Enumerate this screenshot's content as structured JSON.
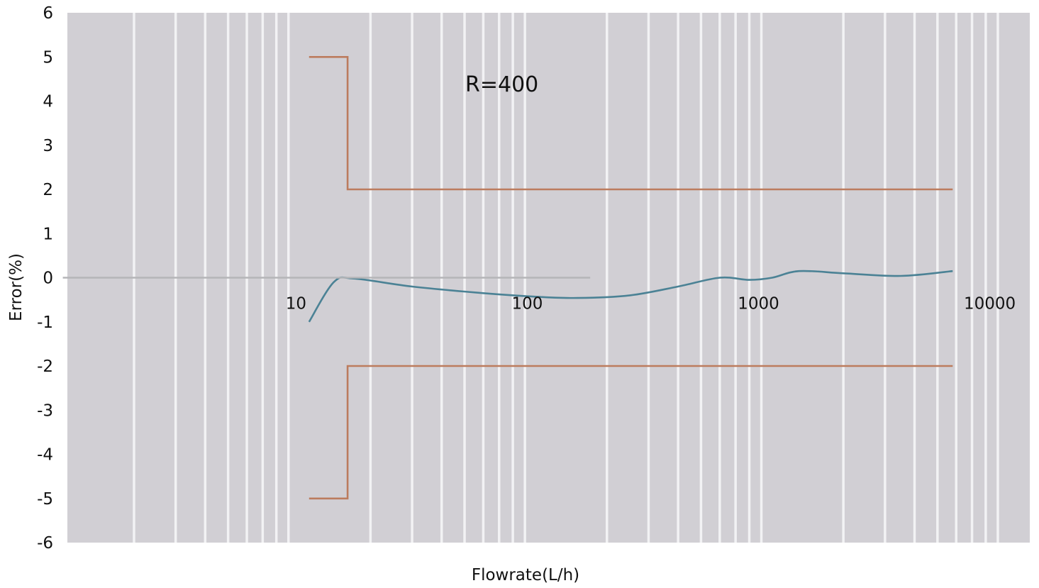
{
  "chart_data": {
    "type": "line",
    "title": "",
    "xlabel": "Flowrate(L/h)",
    "ylabel": "Error(%)",
    "x_scale": "log",
    "xlim": [
      1,
      20000
    ],
    "ylim": [
      -6,
      6
    ],
    "y_ticks": [
      6,
      5,
      4,
      3,
      2,
      1,
      0,
      -1,
      -2,
      -3,
      -4,
      -5,
      -6
    ],
    "x_tick_labels": [
      "10",
      "100",
      "1000",
      "10000"
    ],
    "x_tick_values": [
      10,
      100,
      1000,
      10000
    ],
    "grid": "vertical",
    "background": "#d1cfd4",
    "annotation": "R=400",
    "series": [
      {
        "color": "#bc7c5e",
        "step": true,
        "points": [
          [
            11,
            5
          ],
          [
            16,
            5
          ],
          [
            16,
            2
          ],
          [
            5800,
            2
          ]
        ]
      },
      {
        "color": "#bc7c5e",
        "step": true,
        "points": [
          [
            11,
            -5
          ],
          [
            16,
            -5
          ],
          [
            16,
            -2
          ],
          [
            5800,
            -2
          ]
        ]
      },
      {
        "color": "#4b8295",
        "points": [
          [
            11,
            -1
          ],
          [
            14,
            -0.1
          ],
          [
            17,
            -0.02
          ],
          [
            30,
            -0.2
          ],
          [
            60,
            -0.35
          ],
          [
            100,
            -0.43
          ],
          [
            150,
            -0.46
          ],
          [
            250,
            -0.4
          ],
          [
            400,
            -0.2
          ],
          [
            600,
            0
          ],
          [
            800,
            -0.05
          ],
          [
            1000,
            0
          ],
          [
            1300,
            0.15
          ],
          [
            2000,
            0.1
          ],
          [
            3500,
            0.04
          ],
          [
            5800,
            0.15
          ]
        ]
      },
      {
        "color": "#b5b5b8",
        "points": [
          [
            1,
            0
          ],
          [
            170,
            0
          ]
        ]
      }
    ]
  }
}
